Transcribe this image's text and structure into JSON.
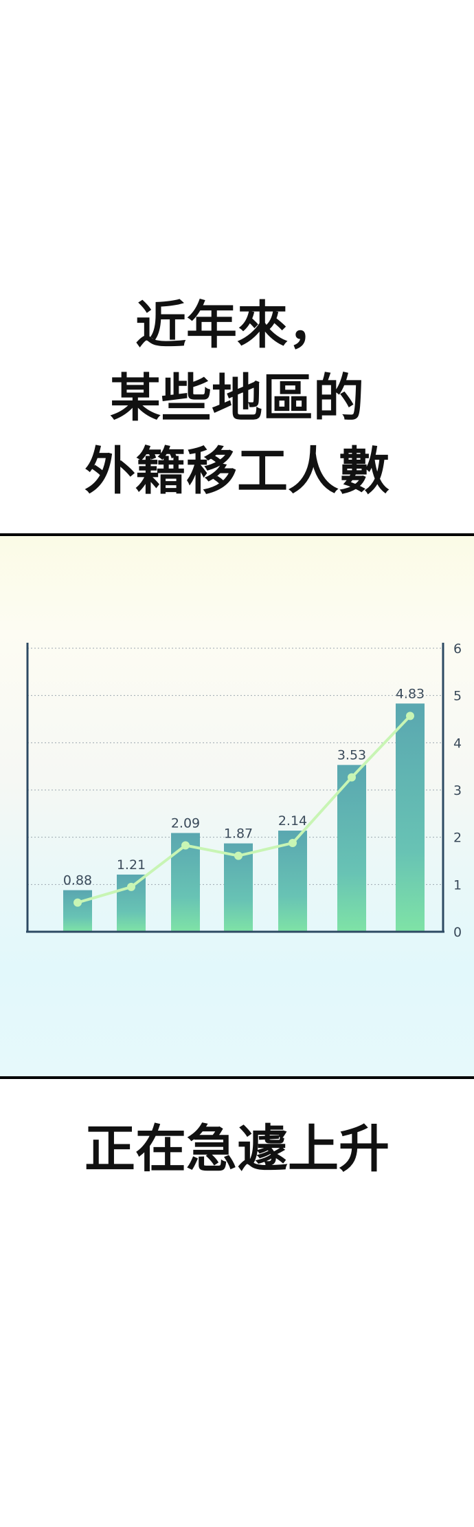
{
  "captions": {
    "top_lines": [
      "近年來，",
      "某些地區的",
      "外籍移工人數"
    ],
    "bottom": "正在急遽上升"
  },
  "colors": {
    "bar_top": "#5aa7b0",
    "bar_bottom": "#7fe3a6",
    "line": "#c8f5b4",
    "axis": "#2d4a63",
    "grid": "#9aa5ae"
  },
  "chart_data": {
    "type": "bar",
    "categories": [
      "",
      "",
      "",
      "",
      "",
      "",
      ""
    ],
    "values": [
      0.88,
      1.21,
      2.09,
      1.87,
      2.14,
      3.53,
      4.83
    ],
    "value_labels": [
      "0.88",
      "1.21",
      "2.09",
      "1.87",
      "2.14",
      "3.53",
      "4.83"
    ],
    "line_series": {
      "values": [
        0.88,
        1.21,
        2.09,
        1.87,
        2.14,
        3.53,
        4.83
      ]
    },
    "y_ticks": [
      "0",
      "1",
      "2",
      "3",
      "4",
      "5",
      "6"
    ],
    "ylim": [
      0,
      6
    ],
    "y_axis_position": "right",
    "grid": true,
    "title": "",
    "xlabel": "",
    "ylabel": ""
  }
}
